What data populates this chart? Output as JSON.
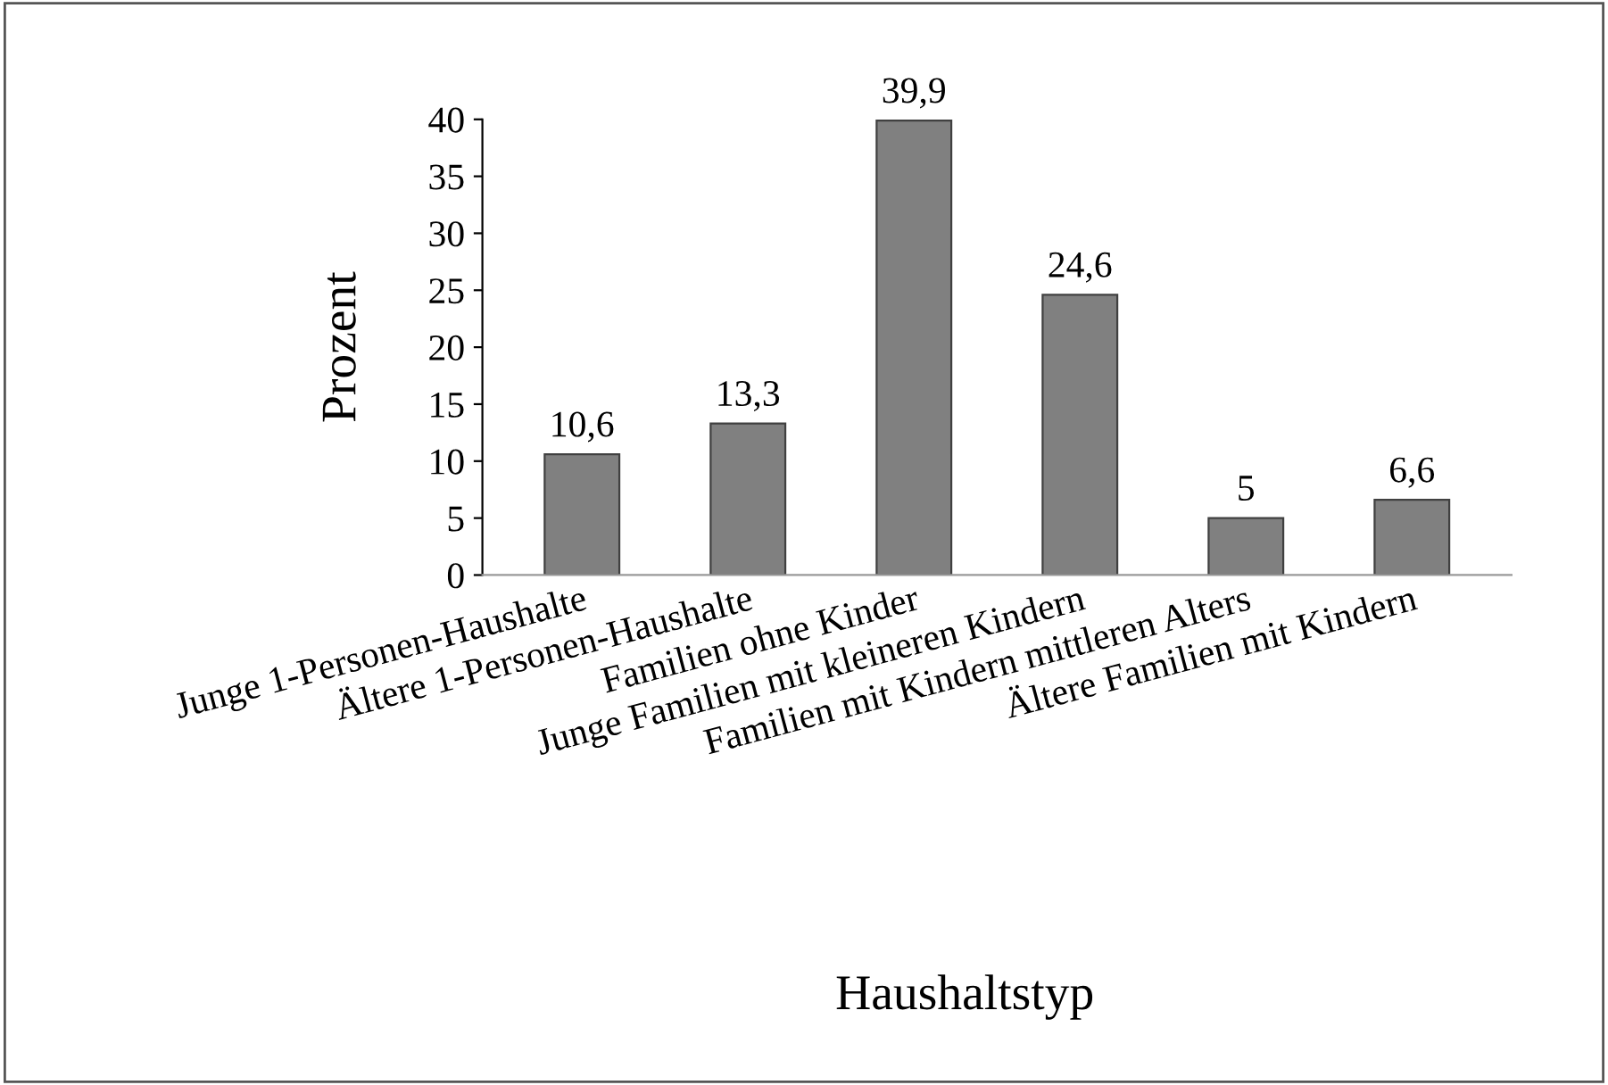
{
  "chart_data": {
    "type": "bar",
    "xlabel": "Haushaltstyp",
    "ylabel": "Prozent",
    "categories": [
      "Junge 1-Personen-Haushalte",
      "Ältere 1-Personen-Haushalte",
      "Familien ohne Kinder",
      "Junge Familien mit kleineren Kindern",
      "Familien mit Kindern mittleren Alters",
      "Ältere Familien mit Kindern"
    ],
    "values": [
      10.6,
      13.3,
      39.9,
      24.6,
      5,
      6.6
    ],
    "value_labels": [
      "10,6",
      "13,3",
      "39,9",
      "24,6",
      "5",
      "6,6"
    ],
    "color": "#808080",
    "ylim": [
      0,
      40
    ],
    "yticks": [
      0,
      5,
      10,
      15,
      20,
      25,
      30,
      35,
      40
    ],
    "grid": false,
    "legend": false
  }
}
